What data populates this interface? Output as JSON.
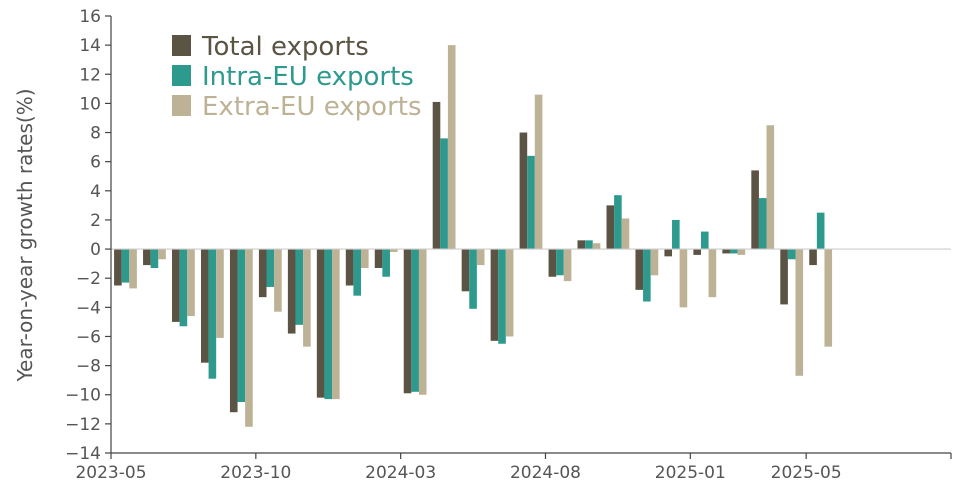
{
  "chart_data": {
    "type": "bar",
    "ylabel": "Year-on-year growth rates(%)",
    "xlabel": "",
    "ylim": [
      -14,
      16
    ],
    "yticks": [
      -14,
      -12,
      -10,
      -8,
      -6,
      -4,
      -2,
      0,
      2,
      4,
      6,
      8,
      10,
      12,
      14,
      16
    ],
    "categories": [
      "2023-05",
      "2023-06",
      "2023-07",
      "2023-08",
      "2023-09",
      "2023-10",
      "2023-11",
      "2023-12",
      "2024-01",
      "2024-02",
      "2024-03",
      "2024-04",
      "2024-05",
      "2024-06",
      "2024-07",
      "2024-08",
      "2024-09",
      "2024-10",
      "2024-11",
      "2024-12",
      "2025-01",
      "2025-02",
      "2025-03",
      "2025-04",
      "2025-05",
      "2025-06",
      "2025-07",
      "2025-08",
      "2025-09"
    ],
    "xtick_labels": [
      "2023-05",
      "2023-10",
      "2024-03",
      "2024-08",
      "2025-01",
      "2025-05"
    ],
    "legend_position": "top-left",
    "grid": false,
    "series": [
      {
        "name": "Total exports",
        "color": "#5b5444",
        "values": [
          -2.5,
          -1.1,
          -5.0,
          -7.8,
          -11.2,
          -3.3,
          -5.8,
          -10.2,
          -2.5,
          -1.3,
          -9.9,
          10.1,
          -2.9,
          -6.3,
          8.0,
          -1.9,
          0.6,
          3.0,
          -2.8,
          -0.5,
          -0.4,
          -0.3,
          5.4,
          -3.8,
          -1.1,
          null,
          null,
          null,
          null
        ]
      },
      {
        "name": "Intra-EU exports",
        "color": "#2e9a8e",
        "values": [
          -2.3,
          -1.3,
          -5.3,
          -8.9,
          -10.5,
          -2.6,
          -5.2,
          -10.3,
          -3.2,
          -1.9,
          -9.8,
          7.6,
          -4.1,
          -6.5,
          6.4,
          -1.8,
          0.6,
          3.7,
          -3.6,
          2.0,
          1.2,
          -0.3,
          3.5,
          -0.7,
          2.5,
          null,
          null,
          null,
          null
        ]
      },
      {
        "name": "Extra-EU exports",
        "color": "#bdb295",
        "values": [
          -2.7,
          -0.7,
          -4.6,
          -6.1,
          -12.2,
          -4.3,
          -6.7,
          -10.3,
          -1.3,
          -0.2,
          -10.0,
          14.0,
          -1.1,
          -6.0,
          10.6,
          -2.2,
          0.4,
          2.1,
          -1.8,
          -4.0,
          -3.3,
          -0.4,
          8.5,
          -8.7,
          -6.7,
          null,
          null,
          null,
          null
        ]
      }
    ]
  }
}
